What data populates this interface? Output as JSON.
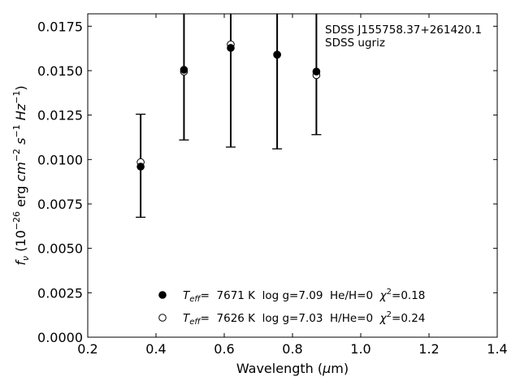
{
  "chart_data": {
    "type": "scatter",
    "xlabel": "Wavelength (μm)",
    "ylabel": "fν (10⁻²⁶ erg cm⁻² s⁻¹ Hz⁻¹)",
    "xlim": [
      0.2,
      1.4
    ],
    "ylim": [
      0.0,
      0.0182
    ],
    "x_ticks": [
      "0.2",
      "0.4",
      "0.6",
      "0.8",
      "1.0",
      "1.2",
      "1.4"
    ],
    "y_ticks": [
      "0.0000",
      "0.0025",
      "0.0050",
      "0.0075",
      "0.0100",
      "0.0125",
      "0.0150",
      "0.0175"
    ],
    "x_tick_values": [
      0.2,
      0.4,
      0.6,
      0.8,
      1.0,
      1.2,
      1.4
    ],
    "y_tick_values": [
      0.0,
      0.0025,
      0.005,
      0.0075,
      0.01,
      0.0125,
      0.015,
      0.0175
    ],
    "annotation": [
      "SDSS J155758.37+261420.1",
      "SDSS ugriz"
    ],
    "grid": false,
    "legend_position": "bottom-center",
    "observed": {
      "x": [
        0.355,
        0.482,
        0.619,
        0.755,
        0.87
      ],
      "y": [
        0.0096,
        0.015,
        0.0163,
        0.0159,
        0.0149
      ],
      "err_low": [
        0.00675,
        0.0111,
        0.0107,
        0.0106,
        0.0114
      ],
      "err_high": [
        0.01255,
        0.0182,
        0.0182,
        0.0182,
        0.0182
      ],
      "cap_top": [
        true,
        false,
        false,
        false,
        false
      ]
    },
    "series": [
      {
        "name": "Teff= 7671 K log g=7.09 He/H=0 χ²=0.18",
        "label_parts": [
          "T",
          "eff",
          "=  7671 K  log g=7.09  He/H=0  ",
          "χ",
          "2",
          "=0.18"
        ],
        "marker": "filled",
        "color": "#000000",
        "x": [
          0.355,
          0.482,
          0.619,
          0.755,
          0.87
        ],
        "y": [
          0.0096,
          0.01505,
          0.01628,
          0.0159,
          0.01495
        ]
      },
      {
        "name": "Teff= 7626 K log g=7.03 H/He=0 χ²=0.24",
        "label_parts": [
          "T",
          "eff",
          "=  7626 K  log g=7.03  H/He=0  ",
          "χ",
          "2",
          "=0.24"
        ],
        "marker": "open",
        "color": "#000000",
        "x": [
          0.355,
          0.482,
          0.619,
          0.755,
          0.87
        ],
        "y": [
          0.00985,
          0.01495,
          0.01648,
          0.0159,
          0.01475
        ]
      }
    ]
  }
}
